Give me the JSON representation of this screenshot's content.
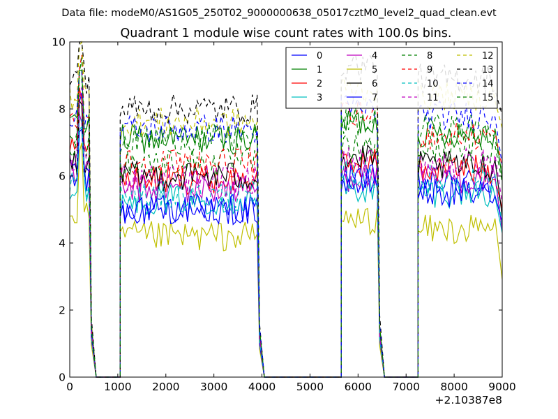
{
  "chart_data": {
    "type": "line",
    "suptitle": "Data file: modeM0/AS1G05_250T02_9000000638_05017cztM0_level2_quad_clean.evt",
    "title": "Quadrant 1 module wise count rates with 100.0s bins.",
    "xlabel": "",
    "ylabel": "",
    "xlim": [
      0,
      9000
    ],
    "ylim": [
      0,
      10
    ],
    "x_offset_label": "+2.10387e8",
    "x_ticks": [
      0,
      1000,
      2000,
      3000,
      4000,
      5000,
      6000,
      7000,
      8000,
      9000
    ],
    "x_tick_labels": [
      "0",
      "1000",
      "2000",
      "3000",
      "4000",
      "5000",
      "6000",
      "7000",
      "8000",
      "9000"
    ],
    "y_ticks": [
      0,
      2,
      4,
      6,
      8,
      10
    ],
    "y_tick_labels": [
      "0",
      "2",
      "4",
      "6",
      "8",
      "10"
    ],
    "legend": {
      "placement": "top-right",
      "columns": 4
    },
    "segments": [
      {
        "start": 50,
        "end": 550
      },
      {
        "start": 1050,
        "end": 4050
      },
      {
        "start": 5650,
        "end": 6550
      },
      {
        "start": 7250,
        "end": 9000
      }
    ],
    "series": [
      {
        "name": "0",
        "color": "#0000ff",
        "dash": "solid",
        "seg_levels": [
          6.3,
          5.0,
          5.9,
          5.8
        ]
      },
      {
        "name": "1",
        "color": "#008000",
        "dash": "solid",
        "seg_levels": [
          7.5,
          7.1,
          7.6,
          7.3
        ]
      },
      {
        "name": "2",
        "color": "#ff0000",
        "dash": "solid",
        "seg_levels": [
          6.8,
          5.9,
          6.4,
          6.2
        ]
      },
      {
        "name": "3",
        "color": "#00bfbf",
        "dash": "solid",
        "seg_levels": [
          5.6,
          5.3,
          5.6,
          5.5
        ]
      },
      {
        "name": "4",
        "color": "#bf00bf",
        "dash": "solid",
        "seg_levels": [
          6.1,
          5.6,
          6.0,
          5.9
        ]
      },
      {
        "name": "5",
        "color": "#bfbf00",
        "dash": "solid",
        "seg_levels": [
          4.8,
          4.2,
          4.7,
          4.4
        ]
      },
      {
        "name": "6",
        "color": "#000000",
        "dash": "solid",
        "seg_levels": [
          6.4,
          6.0,
          6.5,
          6.3
        ]
      },
      {
        "name": "7",
        "color": "#0000ff",
        "dash": "solid",
        "seg_levels": [
          5.9,
          5.0,
          5.8,
          5.5
        ]
      },
      {
        "name": "8",
        "color": "#008000",
        "dash": "dashed",
        "seg_levels": [
          7.0,
          6.4,
          6.8,
          6.8
        ]
      },
      {
        "name": "9",
        "color": "#ff0000",
        "dash": "dashed",
        "seg_levels": [
          7.7,
          6.4,
          7.8,
          7.2
        ]
      },
      {
        "name": "10",
        "color": "#00bfbf",
        "dash": "dashed",
        "seg_levels": [
          5.8,
          5.4,
          6.0,
          5.9
        ]
      },
      {
        "name": "11",
        "color": "#bf00bf",
        "dash": "dashed",
        "seg_levels": [
          6.6,
          5.9,
          6.4,
          6.4
        ]
      },
      {
        "name": "12",
        "color": "#bfbf00",
        "dash": "dashed",
        "seg_levels": [
          8.4,
          7.6,
          8.6,
          8.4
        ]
      },
      {
        "name": "13",
        "color": "#000000",
        "dash": "dashed",
        "seg_levels": [
          8.9,
          8.0,
          9.3,
          8.9
        ]
      },
      {
        "name": "14",
        "color": "#0000ff",
        "dash": "dashed",
        "seg_levels": [
          7.7,
          7.4,
          8.0,
          7.8
        ]
      },
      {
        "name": "15",
        "color": "#008000",
        "dash": "dashed",
        "seg_levels": [
          7.4,
          7.1,
          7.6,
          7.4
        ]
      }
    ]
  }
}
